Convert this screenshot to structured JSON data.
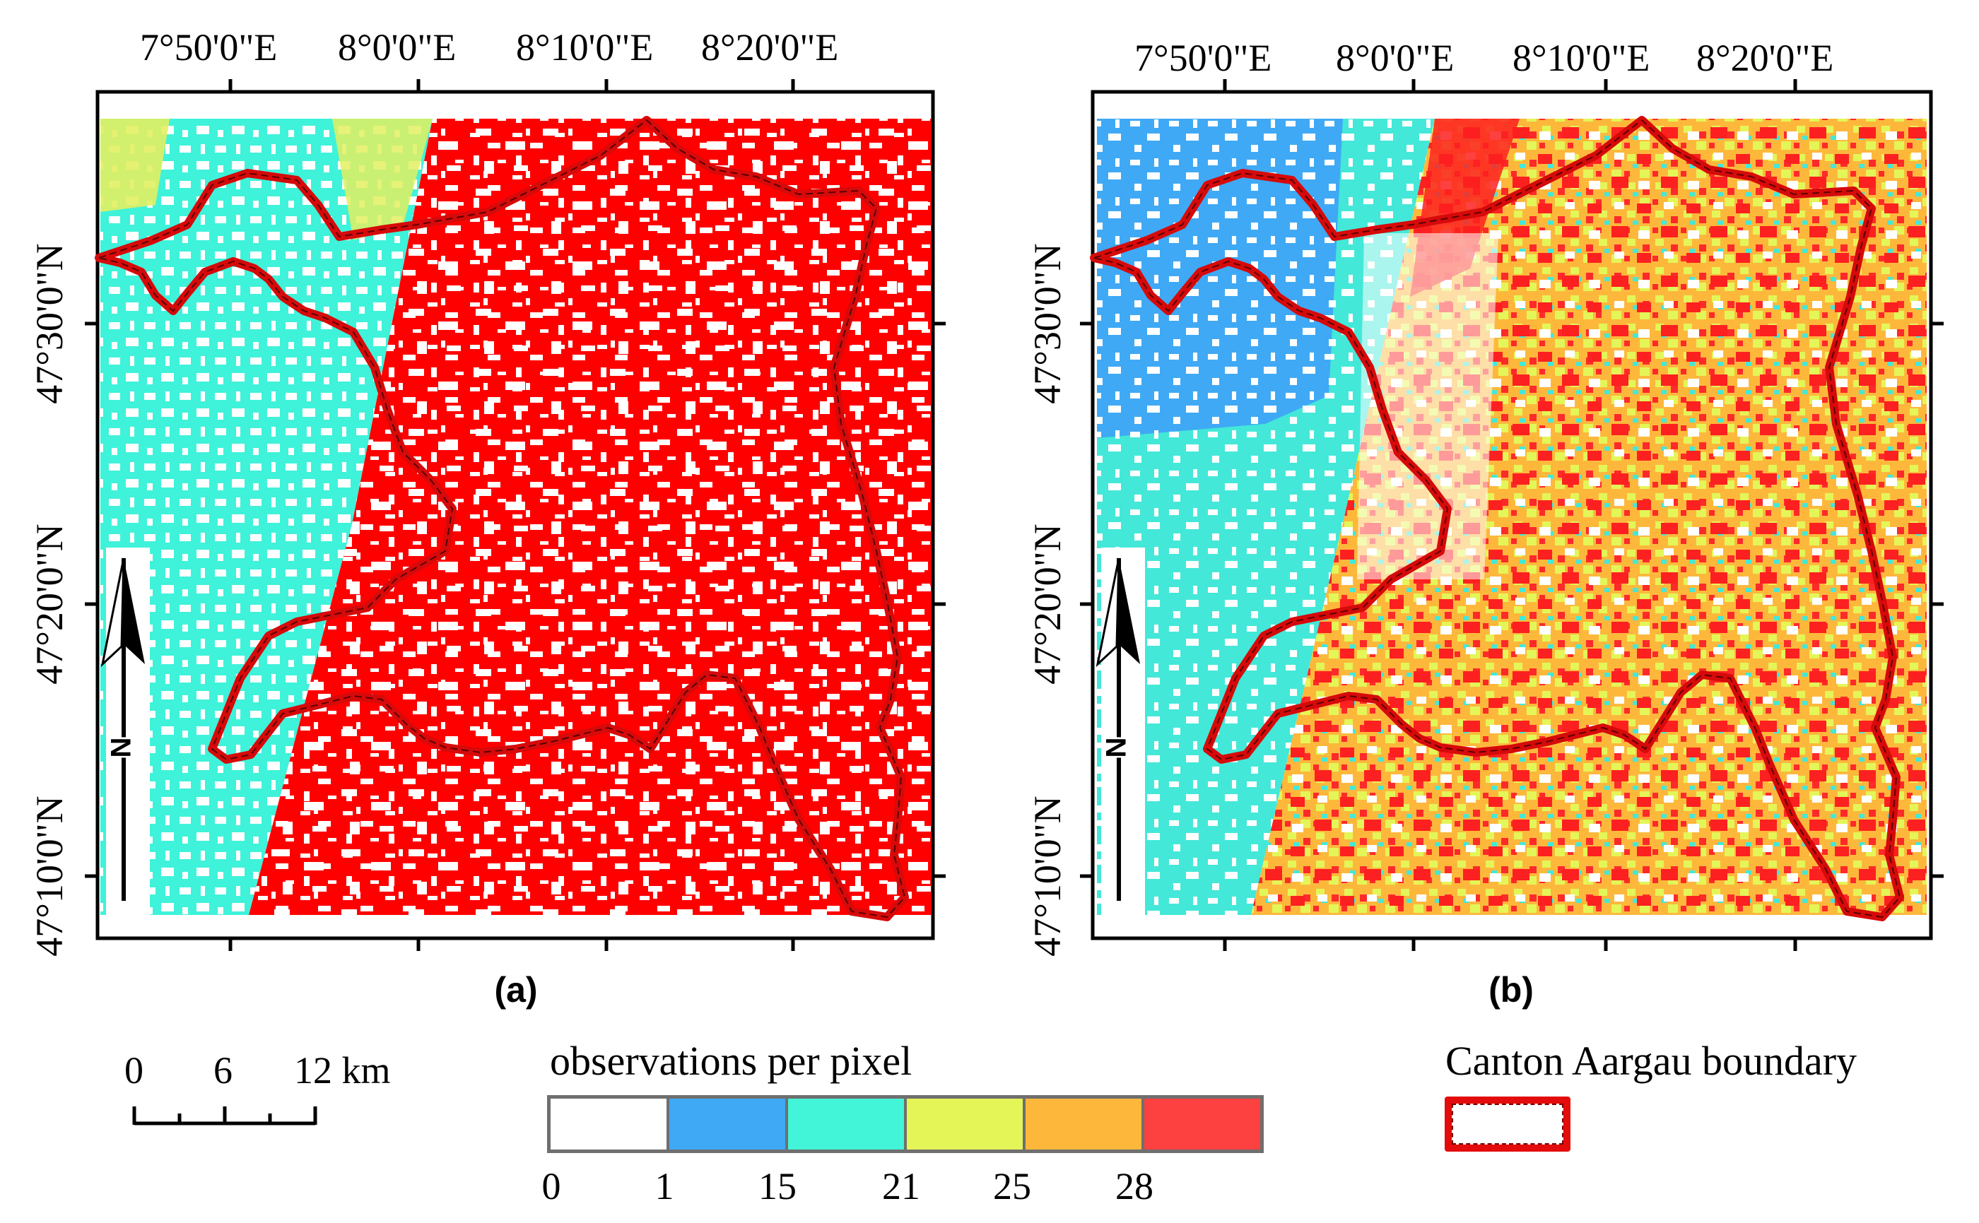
{
  "map_a": {
    "label": "(a)",
    "lon_labels": [
      "7°50'0\"E",
      "8°0'0\"E",
      "8°10'0\"E",
      "8°20'0\"E"
    ],
    "lat_labels": [
      "47°30'0\"N",
      "47°20'0\"N",
      "47°10'0\"N"
    ],
    "north": "N"
  },
  "map_b": {
    "label": "(b)",
    "lon_labels": [
      "7°50'0\"E",
      "8°0'0\"E",
      "8°10'0\"E",
      "8°20'0\"E"
    ],
    "lat_labels": [
      "47°30'0\"N",
      "47°20'0\"N",
      "47°10'0\"N"
    ],
    "north": "N"
  },
  "scalebar": {
    "labels": [
      "0",
      "6",
      "12 km"
    ]
  },
  "legend": {
    "title": "observations per pixel",
    "breaks": [
      "0",
      "1",
      "15",
      "21",
      "25",
      "28"
    ],
    "colors": [
      "#ffffff",
      "#3fa9f5",
      "#43f5d8",
      "#e4f558",
      "#fdb83c",
      "#fd4040"
    ]
  },
  "boundary_legend": {
    "title": "Canton Aargau boundary",
    "color": "#e30b0b"
  }
}
